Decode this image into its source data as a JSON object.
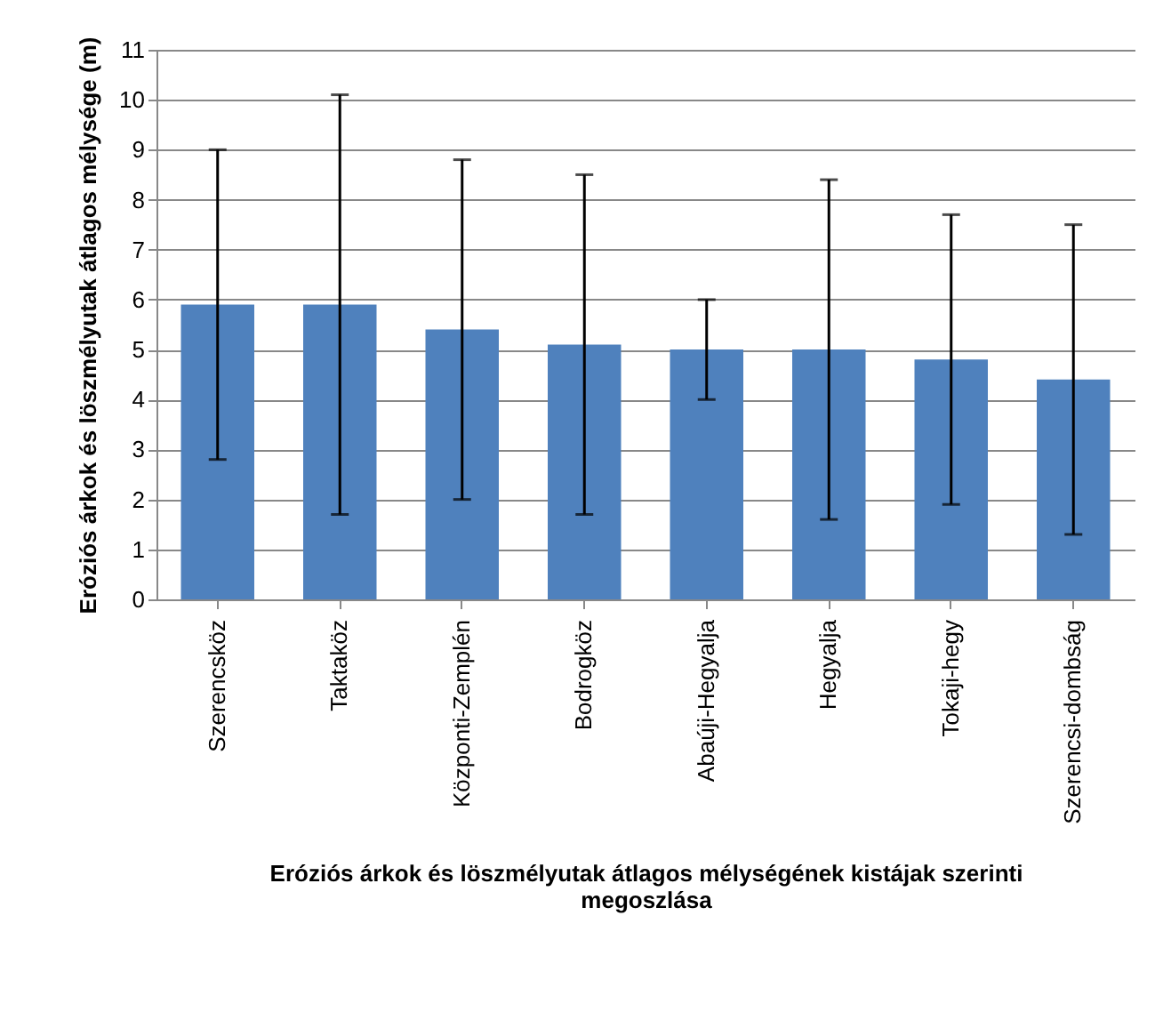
{
  "chart_data": {
    "type": "bar",
    "ylabel": "Eróziós árkok és löszmélyutak átlagos mélysége (m)",
    "xlabel": "Eróziós árkok és löszmélyutak átlagos mélységének kistájak szerinti megoszlása",
    "categories": [
      "Szerencsköz",
      "Taktaköz",
      "Központi-Zemplén",
      "Bodrogköz",
      "Abaúji-Hegyalja",
      "Hegyalja",
      "Tokaji-hegy",
      "Szerencsi-dombság"
    ],
    "values": [
      5.9,
      5.9,
      5.4,
      5.1,
      5.0,
      5.0,
      4.8,
      4.4
    ],
    "errors": [
      [
        2.8,
        9.0
      ],
      [
        1.7,
        10.1
      ],
      [
        2.0,
        8.8
      ],
      [
        1.7,
        8.5
      ],
      [
        4.0,
        6.0
      ],
      [
        1.6,
        8.4
      ],
      [
        1.9,
        7.7
      ],
      [
        1.3,
        7.5
      ]
    ],
    "color": "#4f81bd",
    "ylim": [
      0,
      11
    ],
    "yticks": [
      0,
      1,
      2,
      3,
      4,
      5,
      6,
      7,
      8,
      9,
      10,
      11
    ],
    "grid": "y"
  }
}
